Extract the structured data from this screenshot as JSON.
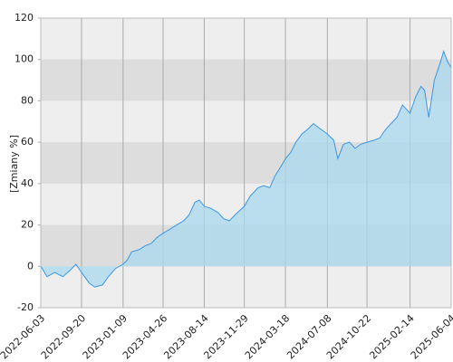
{
  "chart_data": {
    "type": "area",
    "y_label": "[Zmiany %]",
    "x": [
      "2022-06-03",
      "2022-06-20",
      "2022-07-10",
      "2022-08-01",
      "2022-08-20",
      "2022-09-05",
      "2022-09-20",
      "2022-10-10",
      "2022-10-25",
      "2022-11-15",
      "2022-12-01",
      "2022-12-20",
      "2023-01-09",
      "2023-01-20",
      "2023-02-01",
      "2023-02-20",
      "2023-03-10",
      "2023-03-25",
      "2023-04-10",
      "2023-04-26",
      "2023-05-15",
      "2023-06-01",
      "2023-06-20",
      "2023-07-05",
      "2023-07-20",
      "2023-08-01",
      "2023-08-14",
      "2023-09-01",
      "2023-09-20",
      "2023-10-05",
      "2023-10-20",
      "2023-11-05",
      "2023-11-29",
      "2023-12-15",
      "2024-01-05",
      "2024-01-20",
      "2024-02-05",
      "2024-02-20",
      "2024-03-05",
      "2024-03-18",
      "2024-04-01",
      "2024-04-15",
      "2024-05-01",
      "2024-05-15",
      "2024-06-01",
      "2024-06-15",
      "2024-07-08",
      "2024-07-25",
      "2024-08-05",
      "2024-08-20",
      "2024-09-05",
      "2024-09-20",
      "2024-10-05",
      "2024-10-22",
      "2024-11-10",
      "2024-11-25",
      "2024-12-10",
      "2024-12-25",
      "2025-01-10",
      "2025-01-25",
      "2025-02-14",
      "2025-03-01",
      "2025-03-15",
      "2025-03-25",
      "2025-04-05",
      "2025-04-20",
      "2025-05-05",
      "2025-05-15",
      "2025-05-25",
      "2025-06-04"
    ],
    "series": [
      {
        "color": "#3c96e6",
        "values": [
          0,
          -5,
          -3,
          -5,
          -2,
          1,
          -3,
          -8,
          -10,
          -9,
          -5,
          -1,
          1,
          3,
          7,
          8,
          10,
          11,
          14,
          16,
          18,
          20,
          22,
          25,
          31,
          32,
          29,
          28,
          26,
          23,
          22,
          25,
          29,
          34,
          38,
          39,
          38,
          44,
          48,
          52,
          55,
          60,
          64,
          66,
          69,
          67,
          64,
          61,
          52,
          59,
          60,
          57,
          59,
          60,
          61,
          62,
          66,
          69,
          72,
          78,
          74,
          82,
          87,
          85,
          72,
          90,
          98,
          104,
          99,
          96
        ]
      }
    ],
    "xlim": [
      "2022-06-03",
      "2025-06-04"
    ],
    "xticks": [
      "2022-06-03",
      "2022-09-20",
      "2023-01-09",
      "2023-04-26",
      "2023-08-14",
      "2023-11-29",
      "2024-03-18",
      "2024-07-08",
      "2024-10-22",
      "2025-02-14",
      "2025-06-04"
    ],
    "ylim": [
      -20,
      120
    ],
    "yticks": [
      -20,
      0,
      20,
      40,
      60,
      80,
      100,
      120
    ],
    "grid": true
  }
}
